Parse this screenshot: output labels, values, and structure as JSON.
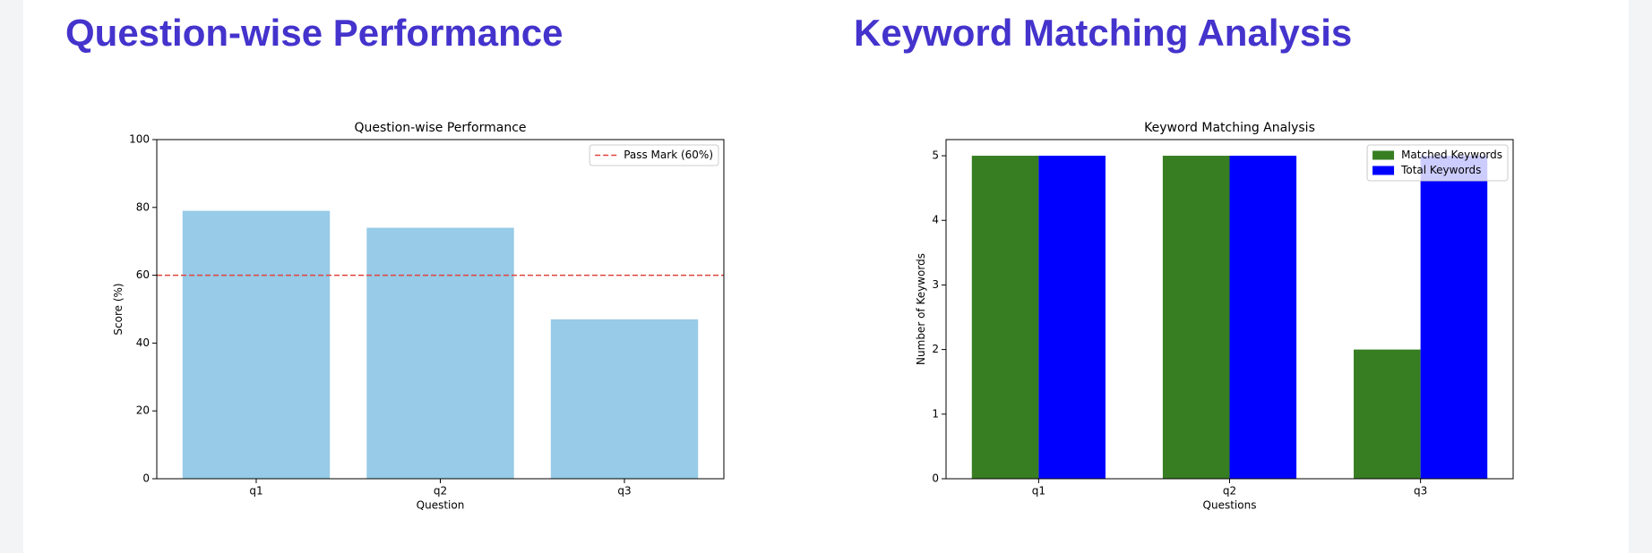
{
  "headings": [
    "Question-wise Performance",
    "Keyword Matching Analysis"
  ],
  "chart_data": [
    {
      "type": "bar",
      "title": "Question-wise Performance",
      "x_label": "Question",
      "y_label": "Score (%)",
      "categories": [
        "q1",
        "q2",
        "q3"
      ],
      "values": [
        79,
        74,
        47
      ],
      "color": "#97cbe7",
      "ylim": [
        0,
        100
      ],
      "yticks": [
        0,
        20,
        40,
        60,
        80,
        100
      ],
      "reference_line": {
        "value": 60,
        "label": "Pass Mark (60%)",
        "color": "#e0443c"
      },
      "legend": "upper right"
    },
    {
      "type": "bar",
      "title": "Keyword Matching Analysis",
      "x_label": "Questions",
      "y_label": "Number of Keywords",
      "categories": [
        "q1",
        "q2",
        "q3"
      ],
      "series": [
        {
          "name": "Matched Keywords",
          "color": "#377e22",
          "values": [
            5,
            5,
            2
          ]
        },
        {
          "name": "Total Keywords",
          "color": "#0000ff",
          "values": [
            5,
            5,
            5
          ]
        }
      ],
      "ylim": [
        0,
        5.25
      ],
      "yticks": [
        0,
        1,
        2,
        3,
        4,
        5
      ],
      "legend": "upper right"
    }
  ]
}
